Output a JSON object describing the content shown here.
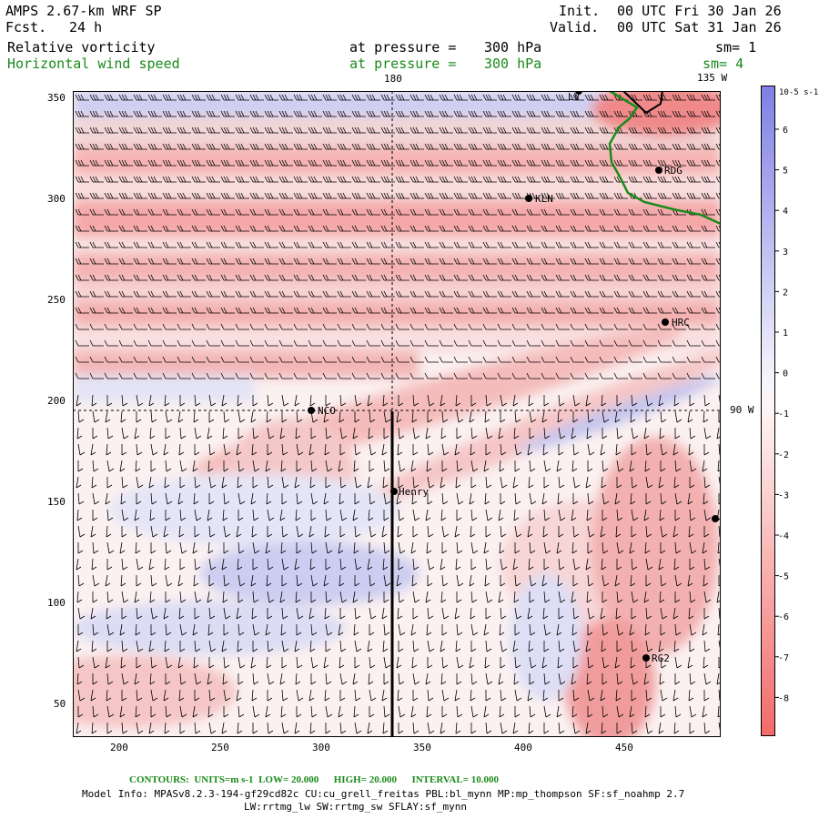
{
  "header": {
    "title": "AMPS 2.67-km WRF SP",
    "fcst_label": "Fcst.",
    "fcst_value": "24 h",
    "init_label": "Init.",
    "init_value": "00 UTC Fri 30 Jan 26",
    "valid_label": "Valid.",
    "valid_value": "00 UTC Sat 31 Jan 26"
  },
  "fields": [
    {
      "name": "Relative vorticity",
      "pressure_label": "at pressure =",
      "pressure_value": "300 hPa",
      "sm": "sm= 1",
      "color": "#000000"
    },
    {
      "name": "Horizontal wind speed",
      "pressure_label": "at pressure =",
      "pressure_value": "300 hPa",
      "sm": "sm= 4",
      "color": "#1a8a1a"
    }
  ],
  "axes": {
    "x_ticks": [
      "200",
      "250",
      "300",
      "350",
      "400",
      "450"
    ],
    "y_ticks": [
      "350",
      "300",
      "250",
      "200",
      "150",
      "100",
      "50"
    ],
    "lon_labels": [
      "180",
      "135 W",
      "90 W"
    ]
  },
  "stations": [
    "LV",
    "RDG",
    "KLN",
    "HRC",
    "NCO",
    "Henry",
    "RG2"
  ],
  "colorbar": {
    "unit": "10-5 s-1",
    "ticks": [
      "6",
      "5",
      "4",
      "3",
      "2",
      "1",
      "0",
      "-1",
      "-2",
      "-3",
      "-4",
      "-5",
      "-6",
      "-7",
      "-8"
    ],
    "positive_color": "#7f7fe5",
    "negative_color": "#f26a6a"
  },
  "contours": {
    "prefix": "CONTOURS:",
    "units_label": "UNITS=m s-1",
    "low": "LOW= 20.000",
    "high": "HIGH= 20.000",
    "interval": "INTERVAL= 10.000"
  },
  "model_info": {
    "line1": "Model Info: MPASv8.2.3-194-gf29cd82c CU:cu_grell_freitas PBL:bl_mynn MP:mp_thompson SF:sf_noahmp 2.7",
    "line2": "LW:rrtmg_lw SW:rrtmg_sw SFLAY:sf_mynn"
  }
}
